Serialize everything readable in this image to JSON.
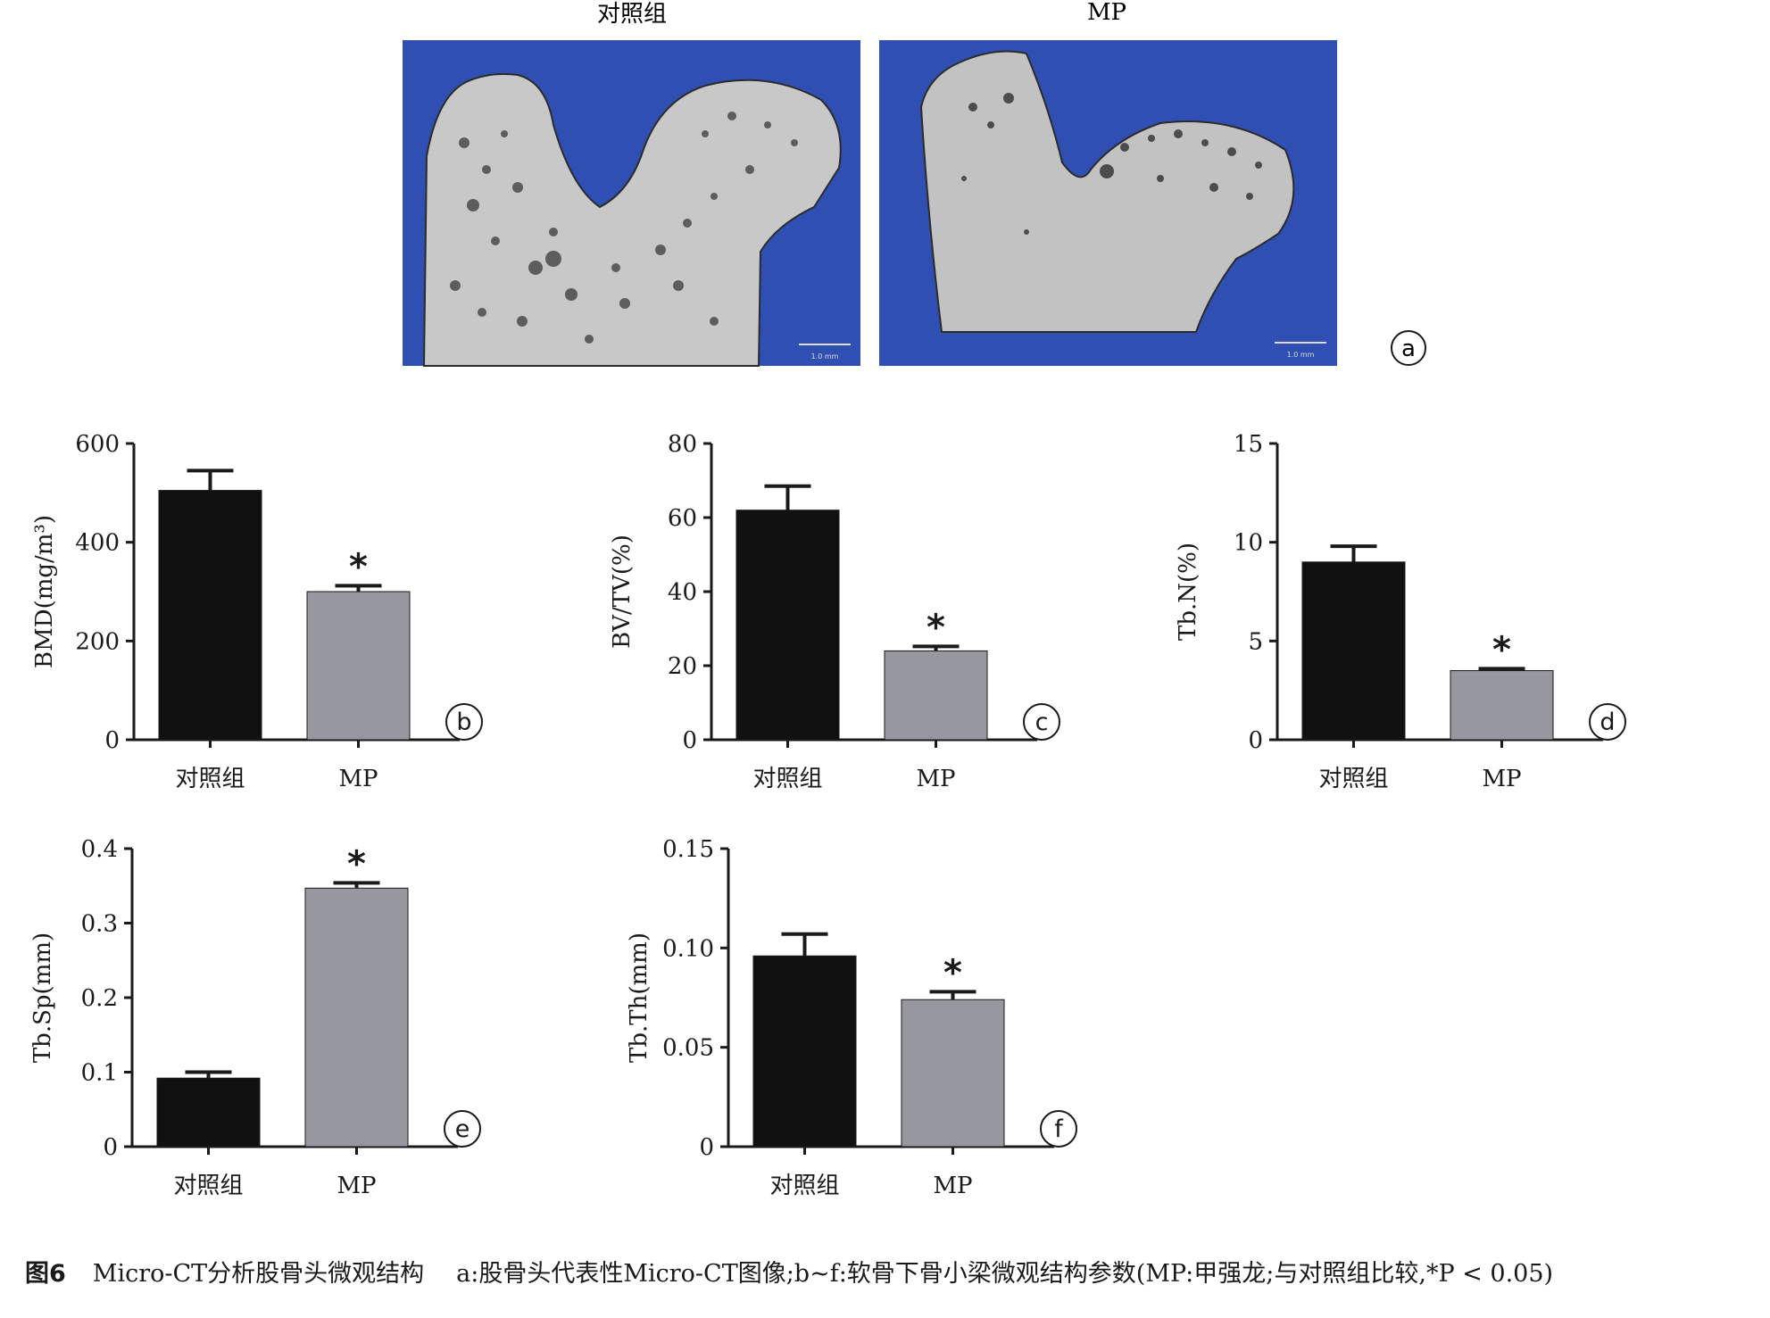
{
  "figure": {
    "ct_panel": {
      "labels": [
        "对照组",
        "MP"
      ],
      "scale_label": "1.0 mm",
      "panel_letter": "a",
      "background_color": "#2f4fb2",
      "bone_color": "#c8c8c8"
    }
  },
  "caption": {
    "number": "图6",
    "title": "Micro-CT分析股骨头微观结构",
    "text": "a:股骨头代表性Micro-CT图像;b~f:软骨下骨小梁微观结构参数(MP:甲强龙;与对照组比较,*P < 0.05)"
  },
  "colors": {
    "control": "#111111",
    "mp": "#97979f",
    "axis": "#1a1a1a"
  },
  "chart_data": [
    {
      "type": "bar",
      "panel": "b",
      "categories": [
        "对照组",
        "MP"
      ],
      "values": [
        505,
        300
      ],
      "errors": [
        40,
        12
      ],
      "significance": [
        "",
        "*"
      ],
      "ylabel": "BMD(mg/m³)",
      "ylim": [
        0,
        600
      ],
      "yticks": [
        "0",
        "200",
        "400",
        "600"
      ],
      "legend": "none",
      "grid": false
    },
    {
      "type": "bar",
      "panel": "c",
      "categories": [
        "对照组",
        "MP"
      ],
      "values": [
        62,
        24
      ],
      "errors": [
        6.5,
        1.2
      ],
      "significance": [
        "",
        "*"
      ],
      "ylabel": "BV/TV(%)",
      "ylim": [
        0,
        80
      ],
      "yticks": [
        "0",
        "20",
        "40",
        "60",
        "80"
      ],
      "legend": "none",
      "grid": false
    },
    {
      "type": "bar",
      "panel": "d",
      "categories": [
        "对照组",
        "MP"
      ],
      "values": [
        9.0,
        3.5
      ],
      "errors": [
        0.8,
        0.1
      ],
      "significance": [
        "",
        "*"
      ],
      "ylabel": "Tb.N(%)",
      "ylim": [
        0,
        15
      ],
      "yticks": [
        "0",
        "5",
        "10",
        "15"
      ],
      "legend": "none",
      "grid": false
    },
    {
      "type": "bar",
      "panel": "e",
      "categories": [
        "对照组",
        "MP"
      ],
      "values": [
        0.092,
        0.347
      ],
      "errors": [
        0.008,
        0.007
      ],
      "significance": [
        "",
        "*"
      ],
      "ylabel": "Tb.Sp(mm)",
      "ylim": [
        0,
        0.4
      ],
      "yticks": [
        "0",
        "0.1",
        "0.2",
        "0.3",
        "0.4"
      ],
      "legend": "none",
      "grid": false
    },
    {
      "type": "bar",
      "panel": "f",
      "categories": [
        "对照组",
        "MP"
      ],
      "values": [
        0.096,
        0.074
      ],
      "errors": [
        0.011,
        0.004
      ],
      "significance": [
        "",
        "*"
      ],
      "ylabel": "Tb.Th(mm)",
      "ylim": [
        0,
        0.15
      ],
      "yticks": [
        "0",
        "0.05",
        "0.10",
        "0.15"
      ],
      "legend": "none",
      "grid": false
    }
  ]
}
